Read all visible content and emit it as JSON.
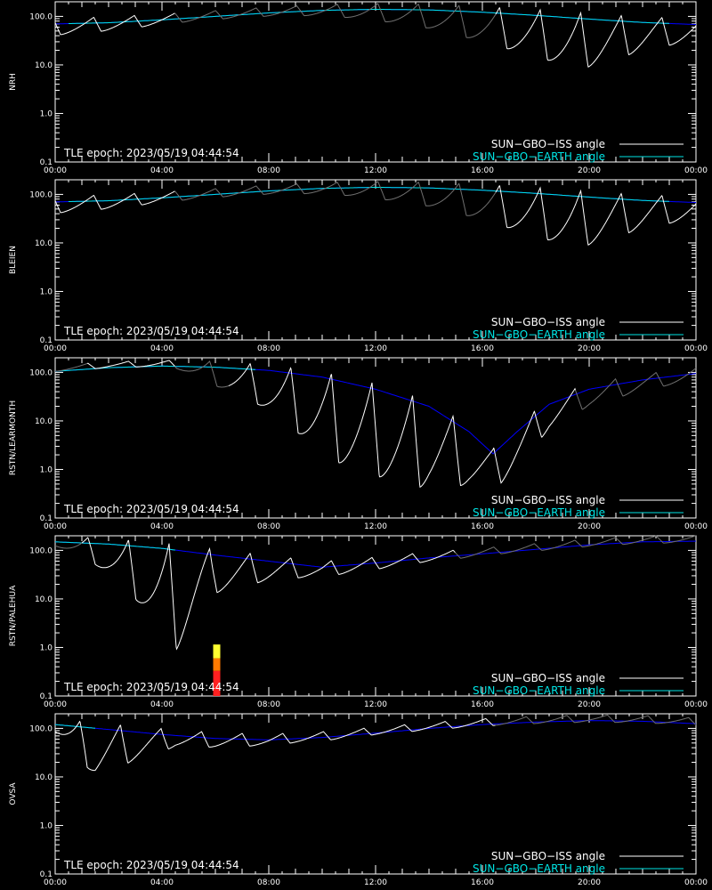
{
  "chart_data": {
    "type": "line",
    "x_unit": "hours",
    "x_range": [
      0,
      24
    ],
    "y_scale": "log",
    "y_range": [
      0.1,
      200
    ],
    "y_tick_labels": [
      "0.1",
      "1.0",
      "10.0",
      "100.0"
    ],
    "x_tick_labels": [
      "00:00",
      "04:00",
      "08:00",
      "12:00",
      "16:00",
      "20:00",
      "00:00"
    ],
    "epoch_text": "TLE epoch: 2023/05/19 04:44:54",
    "legend": [
      {
        "label": "SUN−GBO−ISS angle",
        "color": "#ffffff",
        "placement": "bottom-right"
      },
      {
        "label": "SUN−GBO−EARTH angle",
        "color": "#00e5e5",
        "placement": "bottom-right"
      }
    ],
    "colors": {
      "earth_sun_visible": "#00e5e5",
      "earth_night": "#0000ff",
      "iss_visible": "#ffffff",
      "iss_dim": "#707070"
    },
    "panels": [
      {
        "ylabel": "NRH",
        "earth_angle": [
          [
            0,
            70
          ],
          [
            2,
            74
          ],
          [
            4,
            85
          ],
          [
            6,
            100
          ],
          [
            8,
            118
          ],
          [
            10,
            133
          ],
          [
            12,
            140
          ],
          [
            14,
            136
          ],
          [
            16,
            122
          ],
          [
            18,
            105
          ],
          [
            20,
            88
          ],
          [
            22,
            75
          ],
          [
            24,
            68
          ]
        ],
        "earth_visible_range": [
          0.5,
          23
        ],
        "iss_period": 1.52,
        "iss_phase": 0.2,
        "iss_amp": [
          0.35,
          0.3,
          0.25,
          0.2,
          0.18,
          0.18,
          0.2,
          0.25,
          0.35,
          0.45,
          0.6,
          0.8,
          0.95,
          1.2,
          0.9,
          0.6,
          0.5
        ],
        "iss_dim_ranges": [
          [
            4.5,
            16.5
          ]
        ],
        "event_bars": []
      },
      {
        "ylabel": "BLEIEN",
        "earth_angle": [
          [
            0,
            70
          ],
          [
            2,
            74
          ],
          [
            4,
            85
          ],
          [
            6,
            100
          ],
          [
            8,
            118
          ],
          [
            10,
            133
          ],
          [
            12,
            140
          ],
          [
            14,
            136
          ],
          [
            16,
            122
          ],
          [
            18,
            105
          ],
          [
            20,
            88
          ],
          [
            22,
            75
          ],
          [
            24,
            68
          ]
        ],
        "earth_visible_range": [
          0.5,
          23
        ],
        "iss_period": 1.52,
        "iss_phase": 0.2,
        "iss_amp": [
          0.35,
          0.3,
          0.25,
          0.2,
          0.18,
          0.18,
          0.2,
          0.25,
          0.35,
          0.45,
          0.6,
          0.8,
          1.0,
          1.2,
          0.9,
          0.6,
          0.5
        ],
        "iss_dim_ranges": [
          [
            4.5,
            16.5
          ]
        ],
        "event_bars": []
      },
      {
        "ylabel": "RSTN/LEARMONTH",
        "earth_angle": [
          [
            0,
            105
          ],
          [
            2,
            125
          ],
          [
            4,
            135
          ],
          [
            6,
            128
          ],
          [
            8,
            110
          ],
          [
            10,
            80
          ],
          [
            12,
            45
          ],
          [
            14,
            20
          ],
          [
            15.5,
            6
          ],
          [
            16.4,
            2.1
          ],
          [
            17.3,
            6
          ],
          [
            18.5,
            22
          ],
          [
            20,
            45
          ],
          [
            22,
            70
          ],
          [
            24,
            95
          ]
        ],
        "earth_visible_range": [
          0,
          7.5
        ],
        "iss_period": 1.52,
        "iss_phase": 1.5,
        "iss_amp": [
          0.12,
          0.12,
          0.12,
          0.15,
          0.5,
          0.8,
          1.3,
          1.8,
          1.9,
          1.9,
          1.4,
          0.9,
          0.7,
          0.5,
          0.4,
          0.3,
          0.3
        ],
        "iss_dim_ranges": [
          [
            0,
            1.2
          ],
          [
            4.5,
            6.5
          ],
          [
            19.5,
            24
          ]
        ],
        "event_bars": []
      },
      {
        "ylabel": "RSTN/PALEHUA",
        "earth_angle": [
          [
            0,
            150
          ],
          [
            2,
            135
          ],
          [
            4,
            110
          ],
          [
            6,
            80
          ],
          [
            8,
            60
          ],
          [
            10,
            45
          ],
          [
            12,
            55
          ],
          [
            14,
            70
          ],
          [
            16,
            85
          ],
          [
            18,
            105
          ],
          [
            20,
            130
          ],
          [
            22,
            150
          ],
          [
            24,
            155
          ]
        ],
        "earth_visible_range": [
          0,
          4.5
        ],
        "iss_period": 1.52,
        "iss_phase": 1.5,
        "iss_amp": [
          0.2,
          0.55,
          1.2,
          2.2,
          0.9,
          0.6,
          0.4,
          0.3,
          0.25,
          0.2,
          0.18,
          0.15,
          0.15,
          0.15,
          0.15,
          0.15,
          0.15
        ],
        "iss_dim_ranges": [
          [
            0,
            1
          ],
          [
            15,
            24
          ]
        ],
        "event_bars": [
          {
            "x": 6.05,
            "ylo": 0.1,
            "yhi": 0.33,
            "color": "#ff2020"
          },
          {
            "x": 6.05,
            "ylo": 0.33,
            "yhi": 0.6,
            "color": "#ff7a00"
          },
          {
            "x": 6.05,
            "ylo": 0.6,
            "yhi": 1.15,
            "color": "#ffff30"
          }
        ]
      },
      {
        "ylabel": "OVSA",
        "earth_angle": [
          [
            0,
            120
          ],
          [
            2,
            95
          ],
          [
            4,
            75
          ],
          [
            6,
            62
          ],
          [
            8,
            58
          ],
          [
            10,
            65
          ],
          [
            12,
            80
          ],
          [
            14,
            100
          ],
          [
            16,
            120
          ],
          [
            18,
            135
          ],
          [
            20,
            145
          ],
          [
            22,
            140
          ],
          [
            24,
            125
          ]
        ],
        "earth_visible_range": [
          0,
          1.5
        ],
        "iss_period": 1.52,
        "iss_phase": 1.2,
        "iss_amp": [
          0.3,
          1.1,
          0.7,
          0.35,
          0.3,
          0.25,
          0.2,
          0.18,
          0.15,
          0.15,
          0.15,
          0.15,
          0.15,
          0.15,
          0.15,
          0.15,
          0.15
        ],
        "iss_dim_ranges": [
          [
            16.5,
            24
          ]
        ],
        "event_bars": []
      }
    ]
  }
}
